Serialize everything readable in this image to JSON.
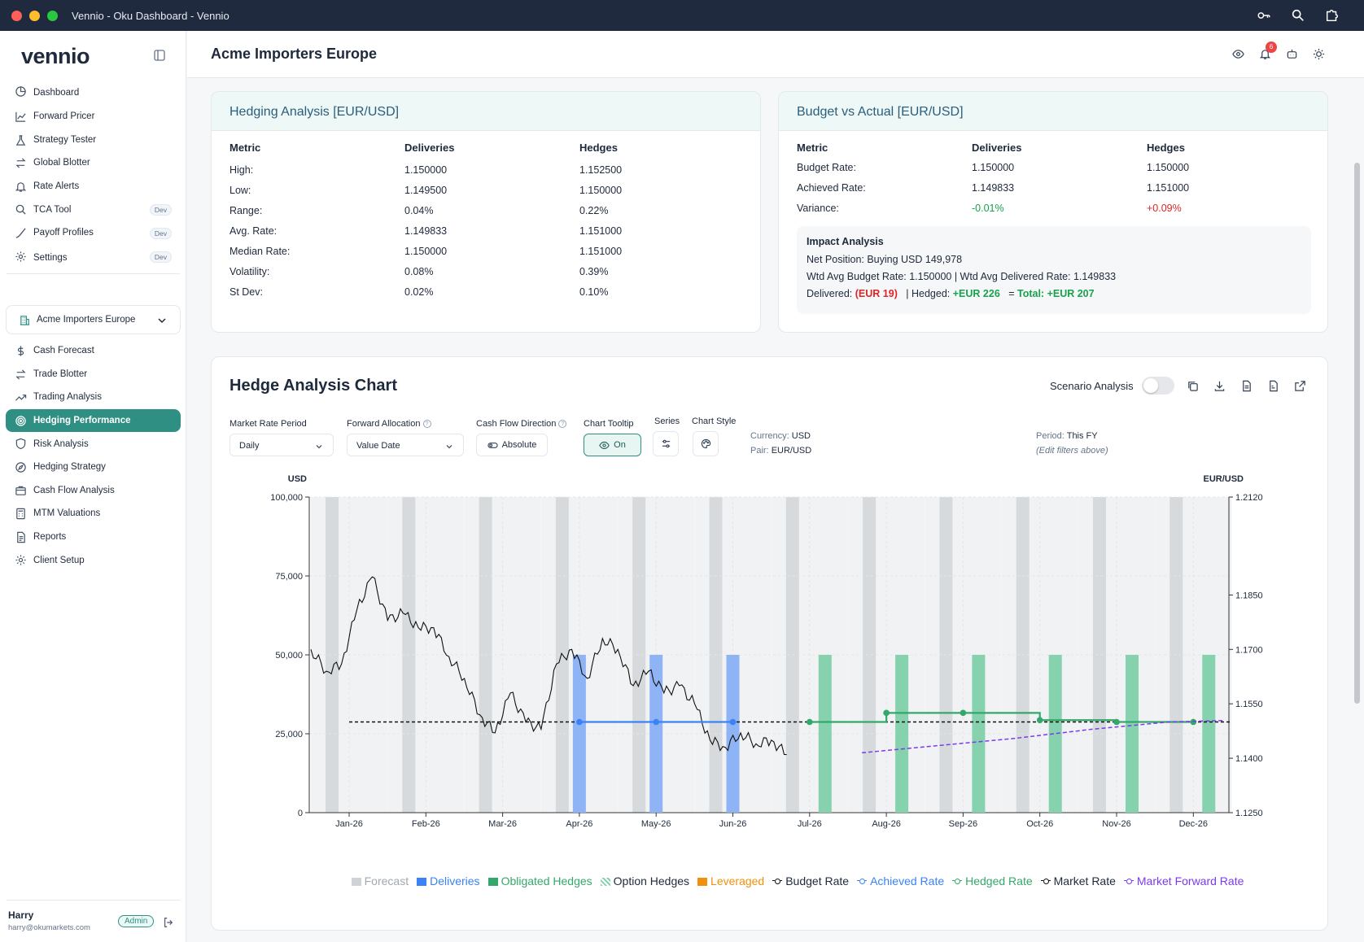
{
  "window": {
    "title": "Vennio - Oku Dashboard - Vennio"
  },
  "sidebar": {
    "logo": "vennio",
    "nav_top": [
      {
        "label": "Dashboard",
        "icon": "dashboard-icon",
        "dev": ""
      },
      {
        "label": "Forward Pricer",
        "icon": "chart-line-icon",
        "dev": ""
      },
      {
        "label": "Strategy Tester",
        "icon": "flask-icon",
        "dev": ""
      },
      {
        "label": "Global Blotter",
        "icon": "swap-icon",
        "dev": ""
      },
      {
        "label": "Rate Alerts",
        "icon": "bell-icon",
        "dev": ""
      },
      {
        "label": "TCA Tool",
        "icon": "search-icon",
        "dev": "Dev"
      },
      {
        "label": "Payoff Profiles",
        "icon": "curve-icon",
        "dev": "Dev"
      },
      {
        "label": "Settings",
        "icon": "gear-icon",
        "dev": "Dev"
      }
    ],
    "client_select": "Acme Importers Europe",
    "nav_client": [
      {
        "label": "Cash Forecast",
        "icon": "dollar-icon"
      },
      {
        "label": "Trade Blotter",
        "icon": "swap-icon"
      },
      {
        "label": "Trading Analysis",
        "icon": "trend-icon"
      },
      {
        "label": "Hedging Performance",
        "icon": "target-icon",
        "active": true
      },
      {
        "label": "Risk Analysis",
        "icon": "shield-icon"
      },
      {
        "label": "Hedging Strategy",
        "icon": "compass-icon"
      },
      {
        "label": "Cash Flow Analysis",
        "icon": "cashflow-icon"
      },
      {
        "label": "MTM Valuations",
        "icon": "calculator-icon"
      },
      {
        "label": "Reports",
        "icon": "report-icon"
      },
      {
        "label": "Client Setup",
        "icon": "gear-icon"
      }
    ],
    "user": {
      "name": "Harry",
      "email": "harry@okumarkets.com",
      "role": "Admin"
    }
  },
  "header": {
    "title": "Acme Importers Europe",
    "notification_count": "6"
  },
  "hedging_analysis": {
    "title": "Hedging Analysis [EUR/USD]",
    "columns": [
      "Metric",
      "Deliveries",
      "Hedges"
    ],
    "rows": [
      [
        "High:",
        "1.150000",
        "1.152500"
      ],
      [
        "Low:",
        "1.149500",
        "1.150000"
      ],
      [
        "Range:",
        "0.04%",
        "0.22%"
      ],
      [
        "Avg. Rate:",
        "1.149833",
        "1.151000"
      ],
      [
        "Median Rate:",
        "1.150000",
        "1.151000"
      ],
      [
        "Volatility:",
        "0.08%",
        "0.39%"
      ],
      [
        "St Dev:",
        "0.02%",
        "0.10%"
      ]
    ]
  },
  "budget_vs_actual": {
    "title": "Budget vs Actual [EUR/USD]",
    "columns": [
      "Metric",
      "Deliveries",
      "Hedges"
    ],
    "rows": [
      [
        "Budget Rate:",
        "1.150000",
        "1.150000"
      ],
      [
        "Achieved Rate:",
        "1.149833",
        "1.151000"
      ],
      [
        "Variance:",
        "-0.01%",
        "+0.09%"
      ]
    ],
    "impact": {
      "title": "Impact Analysis",
      "net_position": "Net Position: Buying USD 149,978",
      "wtd": "Wtd Avg Budget Rate: 1.150000 | Wtd Avg Delivered Rate: 1.149833",
      "delivered_label": "Delivered:",
      "delivered_value": "(EUR 19)",
      "hedged_label": "| Hedged:",
      "hedged_value": "+EUR 226",
      "total_label": "=",
      "total_value": "Total: +EUR 207"
    }
  },
  "chart_card": {
    "title": "Hedge Analysis Chart",
    "scenario_label": "Scenario Analysis",
    "controls": {
      "market_rate_period_label": "Market Rate Period",
      "market_rate_period_value": "Daily",
      "forward_allocation_label": "Forward Allocation",
      "forward_allocation_value": "Value Date",
      "cash_flow_direction_label": "Cash Flow Direction",
      "cash_flow_direction_value": "Absolute",
      "chart_tooltip_label": "Chart Tooltip",
      "chart_tooltip_value": "On",
      "series_label": "Series",
      "chart_style_label": "Chart Style"
    },
    "info": {
      "currency_label": "Currency:",
      "currency": "USD",
      "pair_label": "Pair:",
      "pair": "EUR/USD",
      "period_label": "Period:",
      "period": "This FY",
      "note": "(Edit filters above)"
    },
    "legend": [
      {
        "label": "Forecast",
        "color": "#cfd3d8",
        "kind": "box"
      },
      {
        "label": "Deliveries",
        "color": "#3b82f6",
        "kind": "box"
      },
      {
        "label": "Obligated Hedges",
        "color": "#34a86a",
        "kind": "box"
      },
      {
        "label": "Option Hedges",
        "color": "#1e293b",
        "kind": "hatch"
      },
      {
        "label": "Leveraged",
        "color": "#f0900d",
        "kind": "box"
      },
      {
        "label": "Budget Rate",
        "color": "#111111",
        "kind": "line"
      },
      {
        "label": "Achieved Rate",
        "color": "#3b82f6",
        "kind": "line"
      },
      {
        "label": "Hedged Rate",
        "color": "#34a86a",
        "kind": "line"
      },
      {
        "label": "Market Rate",
        "color": "#111111",
        "kind": "line"
      },
      {
        "label": "Market Forward Rate",
        "color": "#7c3aed",
        "kind": "line"
      }
    ]
  },
  "chart_data": {
    "type": "bar",
    "categories": [
      "Jan-26",
      "Feb-26",
      "Mar-26",
      "Apr-26",
      "May-26",
      "Jun-26",
      "Jul-26",
      "Aug-26",
      "Sep-26",
      "Oct-26",
      "Nov-26",
      "Dec-26"
    ],
    "ylabel_left": "USD",
    "ylabel_right": "EUR/USD",
    "y_left": {
      "min": 0,
      "max": 100000,
      "ticks": [
        "0",
        "25,000",
        "50,000",
        "75,000",
        "100,000"
      ]
    },
    "y_right": {
      "min": 1.125,
      "max": 1.212,
      "ticks": [
        "1.1250",
        "1.1400",
        "1.1550",
        "1.1700",
        "1.1850",
        "1.2120"
      ]
    },
    "series": [
      {
        "name": "Forecast",
        "values": [
          100000,
          100000,
          100000,
          100000,
          100000,
          100000,
          100000,
          100000,
          100000,
          100000,
          100000,
          100000
        ]
      },
      {
        "name": "Deliveries",
        "values": [
          0,
          0,
          0,
          50000,
          50000,
          50000,
          0,
          0,
          0,
          0,
          0,
          0
        ]
      },
      {
        "name": "Obligated Hedges",
        "values": [
          0,
          0,
          0,
          0,
          0,
          0,
          50000,
          50000,
          50000,
          50000,
          50000,
          50000
        ]
      },
      {
        "name": "Budget Rate",
        "values": [
          1.15,
          1.15,
          1.15,
          1.15,
          1.15,
          1.15,
          1.15,
          1.15,
          1.15,
          1.15,
          1.15,
          1.15
        ]
      },
      {
        "name": "Achieved Rate",
        "values": [
          null,
          null,
          null,
          1.15,
          1.15,
          1.15,
          null,
          null,
          null,
          null,
          null,
          null
        ]
      },
      {
        "name": "Hedged Rate",
        "values": [
          null,
          null,
          null,
          null,
          null,
          null,
          1.15,
          1.1525,
          1.1525,
          1.1505,
          1.15,
          1.15
        ]
      },
      {
        "name": "Market Forward Rate",
        "values": [
          null,
          null,
          null,
          null,
          null,
          null,
          null,
          1.1415,
          1.1435,
          1.1455,
          1.148,
          1.15
        ]
      },
      {
        "name": "Market Rate",
        "x": [
          0,
          0.2,
          0.4,
          0.6,
          0.8,
          1.0,
          1.2,
          1.4,
          1.6,
          1.8,
          2.0,
          2.2,
          2.4,
          2.6,
          2.8,
          3.0,
          3.2,
          3.4,
          3.6,
          3.8,
          4.0,
          4.2,
          4.4,
          4.6,
          4.8,
          5.0,
          5.2,
          5.4,
          5.6,
          5.8,
          6.0,
          6.2
        ],
        "values": [
          1.17,
          1.164,
          1.166,
          1.181,
          1.19,
          1.178,
          1.18,
          1.176,
          1.176,
          1.168,
          1.162,
          1.152,
          1.147,
          1.158,
          1.15,
          1.148,
          1.166,
          1.17,
          1.162,
          1.173,
          1.17,
          1.16,
          1.164,
          1.158,
          1.16,
          1.155,
          1.145,
          1.143,
          1.147,
          1.144,
          1.145,
          1.141
        ]
      }
    ]
  }
}
